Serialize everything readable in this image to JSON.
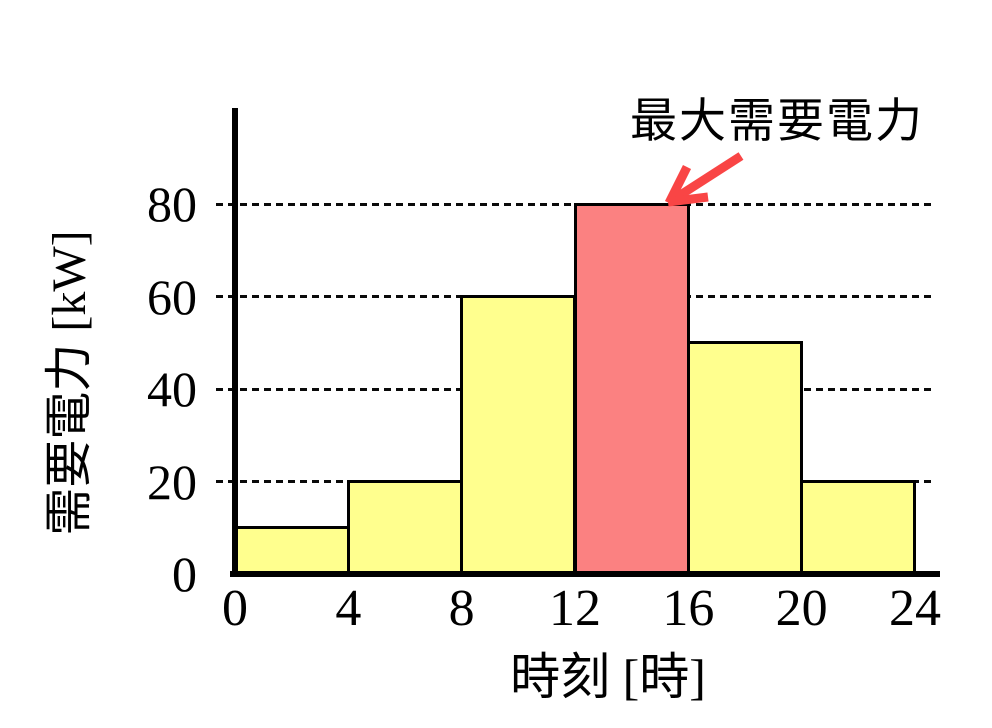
{
  "chart_data": {
    "type": "bar",
    "title": "",
    "xlabel": "時刻 [時]",
    "ylabel": "需要電力 [kW]",
    "x_unit": "時",
    "y_unit": "kW",
    "xlim": [
      0,
      24
    ],
    "ylim": [
      0,
      100
    ],
    "x_ticks": [
      0,
      4,
      8,
      12,
      16,
      20,
      24
    ],
    "y_ticks": [
      0,
      20,
      40,
      60,
      80
    ],
    "grid": "horizontal dashed at y=20,40,60,80",
    "legend": "none",
    "bars": [
      {
        "x_start": 0,
        "x_end": 4,
        "value": 10,
        "color": "#FFFF8E",
        "role": "normal"
      },
      {
        "x_start": 4,
        "x_end": 8,
        "value": 20,
        "color": "#FFFF8E",
        "role": "normal"
      },
      {
        "x_start": 8,
        "x_end": 12,
        "value": 60,
        "color": "#FFFF8E",
        "role": "normal"
      },
      {
        "x_start": 12,
        "x_end": 16,
        "value": 80,
        "color": "#FB8181",
        "role": "peak"
      },
      {
        "x_start": 16,
        "x_end": 20,
        "value": 50,
        "color": "#FFFF8E",
        "role": "normal"
      },
      {
        "x_start": 20,
        "x_end": 24,
        "value": 20,
        "color": "#FFFF8E",
        "role": "normal"
      }
    ],
    "annotation": {
      "text": "最大需要電力",
      "color": "#F94545",
      "points_to_value": 80
    }
  },
  "colors": {
    "bar_normal": "#FFFF8E",
    "bar_peak": "#FB8181",
    "annotation_red": "#F94545",
    "axis_black": "#000000",
    "background": "#FFFFFF"
  }
}
